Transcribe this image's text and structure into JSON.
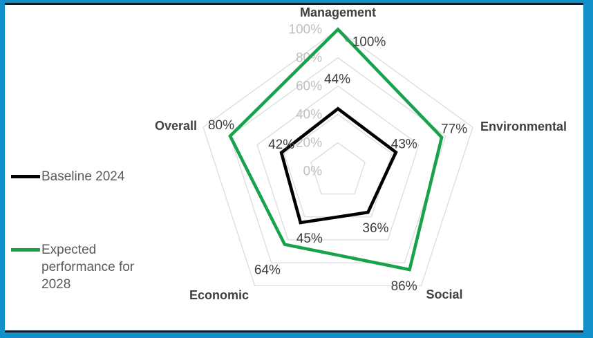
{
  "frame": {
    "outer_border_color": "#1190CA",
    "rule_color": "#0D1B28",
    "background": "#FFFFFF"
  },
  "chart_data": {
    "type": "radar",
    "title": "",
    "categories": [
      "Management",
      "Environmental",
      "Social",
      "Economic",
      "Overall"
    ],
    "series": [
      {
        "name": "Baseline 2024",
        "color": "#000000",
        "values": [
          44,
          43,
          36,
          45,
          42
        ]
      },
      {
        "name": "Expected performance for 2028",
        "color": "#18A24C",
        "values": [
          100,
          77,
          86,
          64,
          80
        ]
      }
    ],
    "axis": {
      "min": 0,
      "max": 100,
      "step": 20,
      "tick_labels": [
        "0%",
        "20%",
        "40%",
        "60%",
        "80%",
        "100%"
      ]
    },
    "data_label_suffix": "%",
    "grid": true,
    "gridline_color": "#D9D9D9",
    "leader_line_color": "#A6A6A6",
    "legend_position": "left",
    "category_label_color": "#404040",
    "data_label_color": "#3D3D3D",
    "tick_label_color": "#BFBFBF"
  },
  "legend": {
    "text_color": "#595959",
    "items": [
      {
        "label": "Baseline 2024",
        "color": "#000000"
      },
      {
        "label": "Expected performance for 2028",
        "color": "#18A24C"
      }
    ]
  }
}
